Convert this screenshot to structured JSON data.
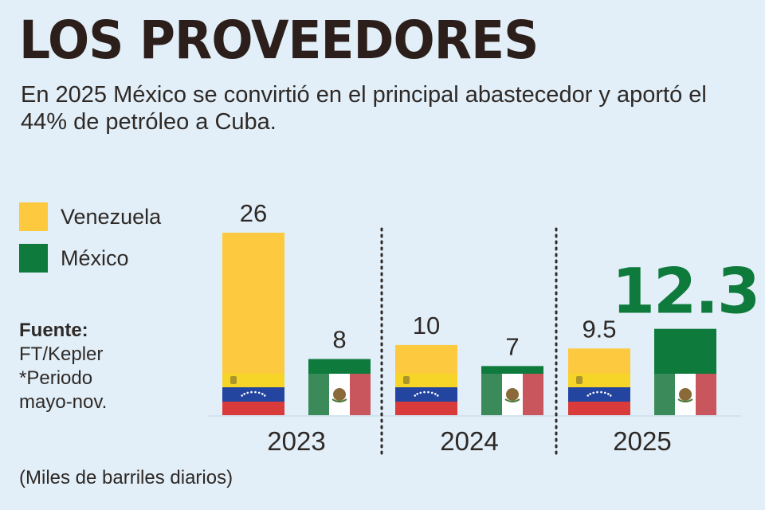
{
  "title": "LOS PROVEEDORES",
  "subtitle": "En 2025 México se convirtió en el principal abastecedor y aportó el 44% de petróleo a Cuba.",
  "legend": [
    {
      "label": "Venezuela",
      "color": "#fcc93f"
    },
    {
      "label": "México",
      "color": "#0e7a3c"
    }
  ],
  "source": {
    "heading": "Fuente:",
    "name": "FT/Kepler",
    "note": "*Periodo mayo-nov."
  },
  "units_note": "(Miles de barriles diarios)",
  "colors": {
    "venezuela": "#fcc93f",
    "mexico": "#0e7a3c",
    "highlight": "#0e7a3c",
    "label": "#2e2926"
  },
  "chart_data": {
    "type": "bar",
    "title": "LOS PROVEEDORES",
    "categories": [
      "2023",
      "2024",
      "2025"
    ],
    "series": [
      {
        "name": "Venezuela",
        "values": [
          26,
          10,
          9.5
        ],
        "labels": [
          "26",
          "10",
          "9.5"
        ]
      },
      {
        "name": "México",
        "values": [
          8,
          7,
          12.3
        ],
        "labels": [
          "8",
          "7",
          "12.3"
        ]
      }
    ],
    "highlight": {
      "series": "México",
      "category": "2025"
    },
    "ylim": [
      0,
      26
    ],
    "xlabel": "",
    "ylabel": "Miles de barriles diarios",
    "grid": false
  }
}
